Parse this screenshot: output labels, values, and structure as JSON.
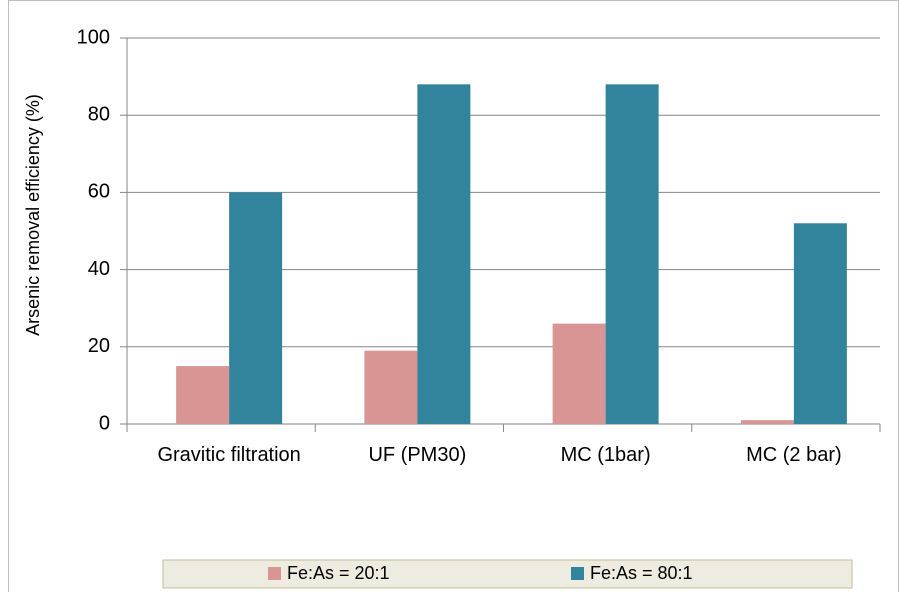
{
  "chart_data": {
    "type": "bar",
    "y_label": "Arsenic removal efficiency (%)",
    "categories": [
      "Gravitic filtration",
      "UF (PM30)",
      "MC (1bar)",
      "MC (2 bar)"
    ],
    "series": [
      {
        "name": "Fe:As = 20:1",
        "color": "#d99594",
        "values": [
          15,
          19,
          26,
          1
        ]
      },
      {
        "name": "Fe:As = 80:1",
        "color": "#31849b",
        "values": [
          60,
          88,
          88,
          52
        ]
      }
    ],
    "ylim": [
      0,
      100
    ],
    "yticks": [
      0,
      20,
      40,
      60,
      80,
      100
    ],
    "grid": true,
    "legend": "bottom"
  }
}
